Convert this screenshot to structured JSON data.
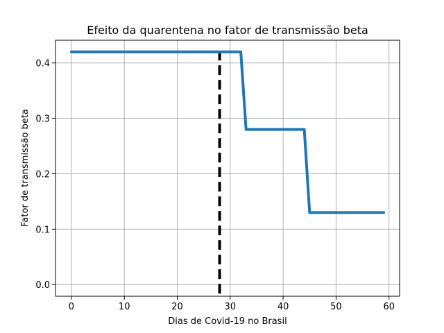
{
  "chart_data": {
    "type": "line",
    "title": "Efeito da quarentena no fator de transmissão beta",
    "xlabel": "Dias de Covid-19 no Brasil",
    "ylabel": "Fator de transmissão beta",
    "xlim": [
      -3,
      62
    ],
    "ylim": [
      -0.021,
      0.441
    ],
    "xticks": [
      0,
      10,
      20,
      30,
      40,
      50,
      60
    ],
    "yticks": [
      0.0,
      0.1,
      0.2,
      0.3,
      0.4
    ],
    "ytick_labels": [
      "0.0",
      "0.1",
      "0.2",
      "0.3",
      "0.4"
    ],
    "grid": true,
    "series": [
      {
        "x": [
          0,
          32,
          33,
          44,
          45,
          59
        ],
        "y": [
          0.42,
          0.42,
          0.28,
          0.28,
          0.13,
          0.13
        ],
        "color": "#1f77b4",
        "style": "solid"
      }
    ],
    "vline": {
      "x": 28,
      "color": "#000000",
      "style": "dashed"
    }
  }
}
